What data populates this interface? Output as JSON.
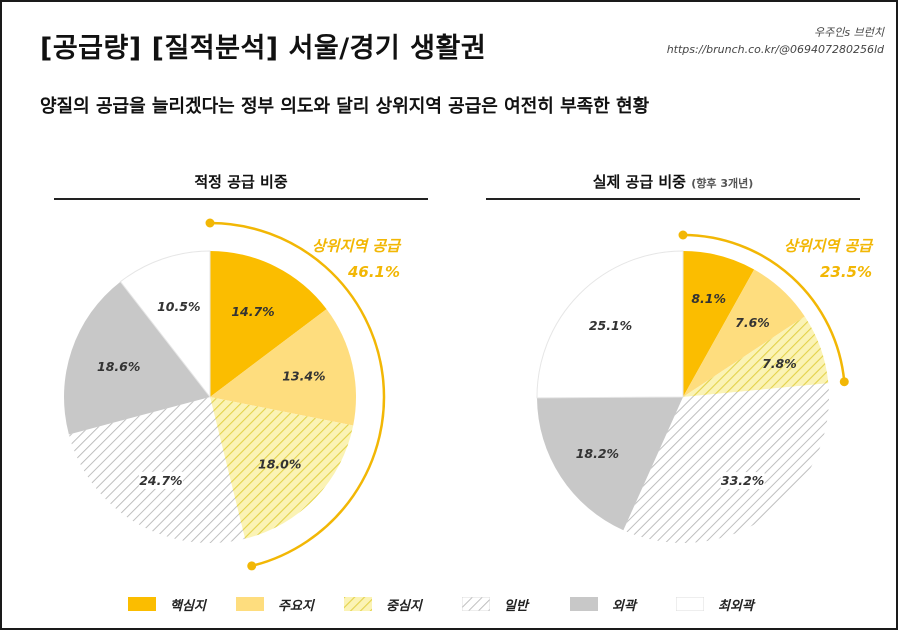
{
  "header": {
    "title": "[공급량] [질적분석] 서울/경기 생활권",
    "credit_name": "우주인s 브런치",
    "credit_url": "https://brunch.co.kr/@069407280256ld",
    "subtitle": "양질의 공급을 늘리겠다는 정부 의도와 달리 상위지역 공급은 여전히 부족한 현황"
  },
  "legend": [
    {
      "label": "핵심지",
      "key": "core"
    },
    {
      "label": "주요지",
      "key": "major"
    },
    {
      "label": "중심지",
      "key": "center"
    },
    {
      "label": "일반",
      "key": "general"
    },
    {
      "label": "외곽",
      "key": "outer"
    },
    {
      "label": "최외곽",
      "key": "outermost"
    }
  ],
  "colors": {
    "core": "#fbbd00",
    "major": "#fedd7e",
    "center_bg": "#fbf3b5",
    "center_stripe": "#e3d24a",
    "general_bg": "#ffffff",
    "general_stripe": "#b8b8b8",
    "outer": "#c8c8c8",
    "outermost": "#ffffff",
    "accent": "#f2b705"
  },
  "chart_data": [
    {
      "type": "pie",
      "title": "적정 공급 비중",
      "note": "",
      "categories": [
        "핵심지",
        "주요지",
        "중심지",
        "일반",
        "외곽",
        "최외곽"
      ],
      "values": [
        14.7,
        13.4,
        18.0,
        24.7,
        18.6,
        10.5
      ],
      "labels": [
        "14.7%",
        "13.4%",
        "18.0%",
        "24.7%",
        "18.6%",
        "10.5%"
      ],
      "annotation": {
        "label": "상위지역 공급",
        "value": "46.1%"
      }
    },
    {
      "type": "pie",
      "title": "실제 공급 비중",
      "note": "(향후 3개년)",
      "categories": [
        "핵심지",
        "주요지",
        "중심지",
        "일반",
        "외곽",
        "최외곽"
      ],
      "values": [
        8.1,
        7.6,
        7.8,
        33.2,
        18.2,
        25.1
      ],
      "labels": [
        "8.1%",
        "7.6%",
        "7.8%",
        "33.2%",
        "18.2%",
        "25.1%"
      ],
      "annotation": {
        "label": "상위지역 공급",
        "value": "23.5%"
      }
    }
  ]
}
